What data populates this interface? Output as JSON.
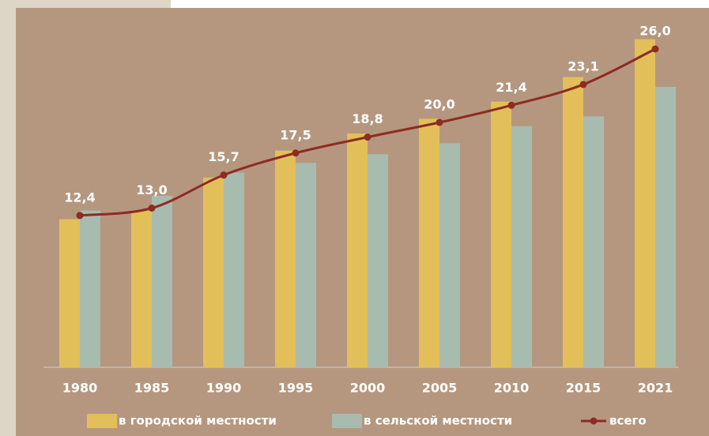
{
  "chart_data": {
    "type": "bar-line",
    "categories": [
      "1980",
      "1985",
      "1990",
      "1995",
      "2000",
      "2005",
      "2010",
      "2015",
      "2021"
    ],
    "series": [
      {
        "name": "в городской местности",
        "color": "#e3bf5a",
        "type": "bar",
        "values": [
          12.1,
          12.8,
          15.5,
          17.7,
          19.1,
          20.3,
          21.7,
          23.7,
          26.8
        ]
      },
      {
        "name": "в сельской местности",
        "color": "#a8bbaf",
        "type": "bar",
        "values": [
          12.8,
          14.0,
          15.9,
          16.7,
          17.4,
          18.3,
          19.7,
          20.5,
          22.9
        ]
      },
      {
        "name": "всего",
        "color": "#8e2b22",
        "type": "line",
        "values": [
          12.4,
          13.0,
          15.7,
          17.5,
          18.8,
          20.0,
          21.4,
          23.1,
          26.0
        ],
        "value_labels": [
          "12,4",
          "13,0",
          "15,7",
          "17,5",
          "18,8",
          "20,0",
          "21,4",
          "23,1",
          "26,0"
        ]
      }
    ],
    "ylim": [
      0,
      30
    ],
    "legend": "bottom"
  }
}
